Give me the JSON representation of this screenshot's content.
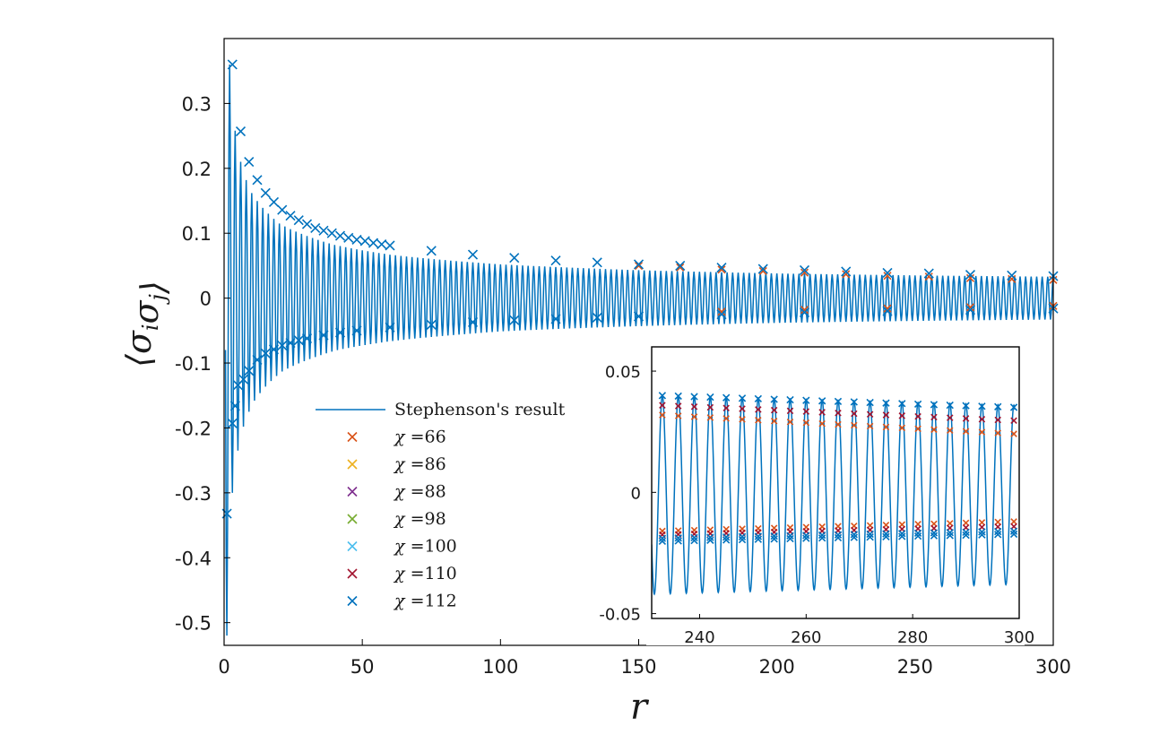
{
  "chart_data": [
    {
      "type": "line",
      "role": "main",
      "xlabel": "r",
      "ylabel": "⟨σiσj⟩",
      "ylabel_parts": [
        "⟨",
        "σ",
        "i",
        "σ",
        "j",
        "⟩"
      ],
      "xlim": [
        0,
        300
      ],
      "ylim": [
        -0.535,
        0.4
      ],
      "x_ticks": [
        0,
        50,
        100,
        150,
        200,
        250,
        300
      ],
      "x_tick_labels": [
        "0",
        "50",
        "100",
        "150",
        "200",
        "250",
        "300"
      ],
      "y_ticks": [
        0.3,
        0.2,
        0.1,
        0,
        -0.1,
        -0.2,
        -0.3,
        -0.4,
        -0.5
      ],
      "y_tick_labels": [
        "0.3",
        "0.2",
        "0.1",
        "0",
        "-0.1",
        "-0.2",
        "-0.3",
        "-0.4",
        "-0.5"
      ],
      "grid": false,
      "curve": {
        "name": "Stephenson's result",
        "formula": "oscillating envelope: y(r) = A_pos(r) for even r, -A_neg(r) for odd r",
        "peaks_even_r": [
          [
            2,
            0.36
          ],
          [
            4,
            0.258
          ],
          [
            6,
            0.21
          ],
          [
            8,
            0.182
          ],
          [
            10,
            0.162
          ],
          [
            20,
            0.115
          ],
          [
            40,
            0.082
          ],
          [
            60,
            0.067
          ],
          [
            100,
            0.052
          ],
          [
            150,
            0.043
          ],
          [
            200,
            0.038
          ],
          [
            250,
            0.035
          ],
          [
            300,
            0.033
          ]
        ],
        "troughs_odd_r": [
          [
            1,
            -0.52
          ],
          [
            3,
            -0.3
          ],
          [
            5,
            -0.235
          ],
          [
            7,
            -0.198
          ],
          [
            9,
            -0.175
          ],
          [
            11,
            -0.158
          ],
          [
            21,
            -0.113
          ],
          [
            41,
            -0.08
          ],
          [
            61,
            -0.066
          ],
          [
            101,
            -0.051
          ],
          [
            151,
            -0.043
          ],
          [
            201,
            -0.038
          ],
          [
            251,
            -0.035
          ],
          [
            299,
            -0.033
          ]
        ]
      },
      "markers_upper": [
        [
          3,
          0.36
        ],
        [
          6,
          0.257
        ],
        [
          9,
          0.21
        ],
        [
          12,
          0.182
        ],
        [
          15,
          0.162
        ],
        [
          18,
          0.148
        ],
        [
          21,
          0.136
        ],
        [
          24,
          0.127
        ],
        [
          27,
          0.12
        ],
        [
          30,
          0.114
        ],
        [
          33,
          0.108
        ],
        [
          36,
          0.104
        ],
        [
          39,
          0.1
        ],
        [
          42,
          0.096
        ],
        [
          45,
          0.093
        ],
        [
          48,
          0.09
        ],
        [
          51,
          0.088
        ],
        [
          54,
          0.085
        ],
        [
          57,
          0.083
        ],
        [
          60,
          0.081
        ],
        [
          75,
          0.073
        ],
        [
          90,
          0.067
        ],
        [
          105,
          0.062
        ],
        [
          120,
          0.058
        ],
        [
          135,
          0.055
        ],
        [
          150,
          0.052
        ],
        [
          165,
          0.05
        ],
        [
          180,
          0.047
        ],
        [
          195,
          0.045
        ],
        [
          210,
          0.043
        ],
        [
          225,
          0.041
        ],
        [
          240,
          0.039
        ],
        [
          255,
          0.038
        ],
        [
          270,
          0.036
        ],
        [
          285,
          0.035
        ],
        [
          300,
          0.034
        ]
      ],
      "markers_lower": [
        [
          1,
          -0.332
        ],
        [
          3,
          -0.193
        ],
        [
          4,
          -0.166
        ],
        [
          5,
          -0.134
        ],
        [
          7,
          -0.125
        ],
        [
          9,
          -0.112
        ],
        [
          12,
          -0.095
        ],
        [
          15,
          -0.085
        ],
        [
          18,
          -0.079
        ],
        [
          21,
          -0.073
        ],
        [
          24,
          -0.069
        ],
        [
          27,
          -0.065
        ],
        [
          30,
          -0.062
        ],
        [
          36,
          -0.057
        ],
        [
          42,
          -0.053
        ],
        [
          48,
          -0.05
        ],
        [
          60,
          -0.045
        ],
        [
          75,
          -0.041
        ],
        [
          90,
          -0.037
        ],
        [
          105,
          -0.034
        ],
        [
          120,
          -0.032
        ],
        [
          135,
          -0.03
        ],
        [
          150,
          -0.028
        ],
        [
          180,
          -0.025
        ],
        [
          210,
          -0.022
        ],
        [
          240,
          -0.02
        ],
        [
          270,
          -0.018
        ],
        [
          300,
          -0.016
        ]
      ],
      "series": [
        {
          "name": "χ =66",
          "label_chi": "χ",
          "label_value": "=66",
          "color": "#d95319"
        },
        {
          "name": "χ =86",
          "label_chi": "χ",
          "label_value": "=86",
          "color": "#edb120"
        },
        {
          "name": "χ =88",
          "label_chi": "χ",
          "label_value": "=88",
          "color": "#7e2f8e"
        },
        {
          "name": "χ =98",
          "label_chi": "χ",
          "label_value": "=98",
          "color": "#77ac30"
        },
        {
          "name": "χ =100",
          "label_chi": "χ",
          "label_value": "=100",
          "color": "#4dbeee"
        },
        {
          "name": "χ =110",
          "label_chi": "χ",
          "label_value": "=110",
          "color": "#a2142f"
        },
        {
          "name": "χ =112",
          "label_chi": "χ",
          "label_value": "=112",
          "color": "#0072bd"
        }
      ],
      "legend": {
        "location": "lower-center",
        "entries": [
          "Stephenson's result",
          "χ =66",
          "χ =86",
          "χ =88",
          "χ =98",
          "χ =100",
          "χ =110",
          "χ =112"
        ]
      },
      "line_color": "#0072bd"
    },
    {
      "type": "line",
      "role": "inset",
      "xlim": [
        231,
        300
      ],
      "ylim": [
        -0.052,
        0.06
      ],
      "x_ticks": [
        240,
        260,
        280,
        300
      ],
      "x_tick_labels": [
        "240",
        "260",
        "280",
        "300"
      ],
      "y_ticks": [
        0.05,
        0,
        -0.05
      ],
      "y_tick_labels": [
        "0.05",
        "0",
        "-0.05"
      ],
      "curve": {
        "name": "Stephenson's result",
        "peak": 0.04,
        "trough": -0.042,
        "period": 3
      },
      "markers": {
        "chi66_upper": [
          [
            232,
            0.032
          ],
          [
            300,
            0.024
          ]
        ],
        "chi66_lower": [
          [
            232,
            -0.016
          ],
          [
            300,
            -0.012
          ]
        ],
        "chi112_upper": [
          [
            232,
            0.04
          ],
          [
            300,
            0.035
          ]
        ],
        "chi112_lower": [
          [
            232,
            -0.019
          ],
          [
            300,
            -0.016
          ]
        ]
      }
    }
  ]
}
